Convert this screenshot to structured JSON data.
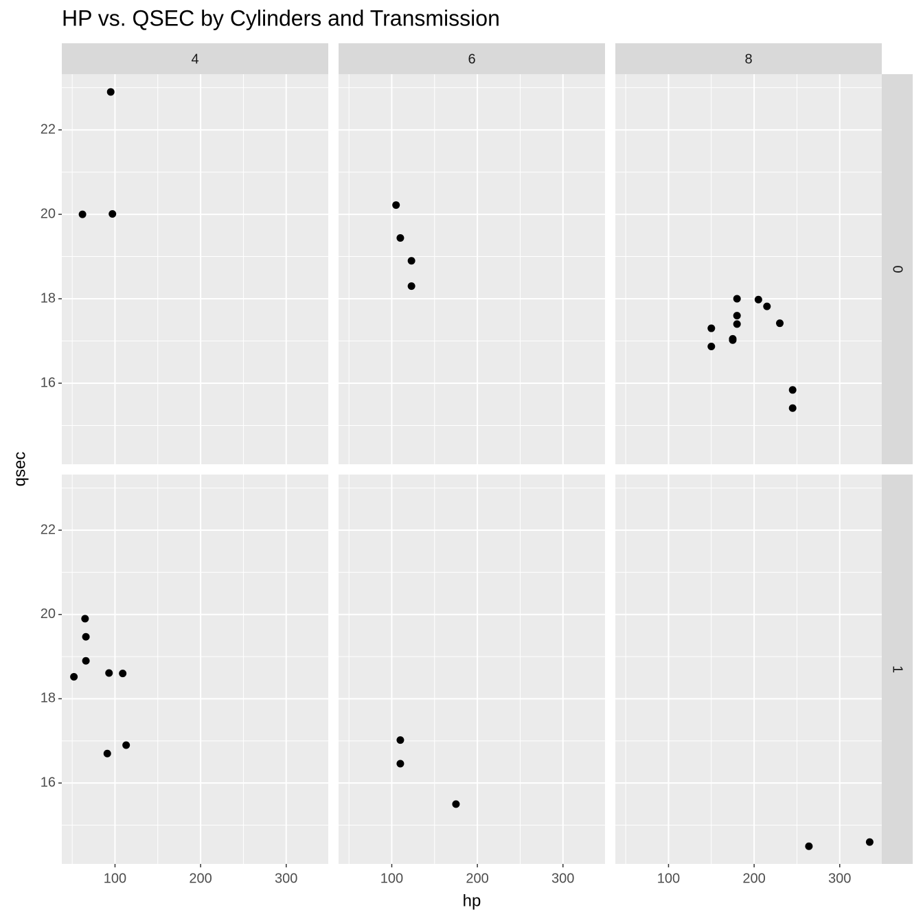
{
  "chart_data": {
    "type": "scatter",
    "title": "HP vs. QSEC by Cylinders and Transmission",
    "xlabel": "hp",
    "ylabel": "qsec",
    "columns": [
      "4",
      "6",
      "8"
    ],
    "rows": [
      "0",
      "1"
    ],
    "xlim": [
      37.85,
      349.15
    ],
    "xticks": [
      100,
      200,
      300
    ],
    "ylim": [
      14.08,
      23.32
    ],
    "yticks": [
      16,
      18,
      20,
      22
    ],
    "grid": true,
    "color": "#000000",
    "panels": [
      {
        "x": [
          62,
          95,
          97
        ],
        "y": [
          20.0,
          22.9,
          20.01
        ]
      },
      {
        "x": [
          110,
          105,
          123,
          123
        ],
        "y": [
          19.44,
          20.22,
          18.3,
          18.9
        ]
      },
      {
        "x": [
          175,
          245,
          180,
          180,
          180,
          205,
          215,
          230,
          150,
          150,
          245,
          175
        ],
        "y": [
          17.02,
          15.84,
          17.4,
          17.6,
          18.0,
          17.98,
          17.82,
          17.42,
          16.87,
          17.3,
          15.41,
          17.05
        ]
      },
      {
        "x": [
          93,
          66,
          52,
          65,
          66,
          91,
          113,
          109
        ],
        "y": [
          18.61,
          19.47,
          18.52,
          19.9,
          18.9,
          16.7,
          16.9,
          18.6
        ]
      },
      {
        "x": [
          110,
          110,
          175
        ],
        "y": [
          16.46,
          17.02,
          15.5
        ]
      },
      {
        "x": [
          264,
          335
        ],
        "y": [
          14.5,
          14.6
        ]
      }
    ]
  }
}
